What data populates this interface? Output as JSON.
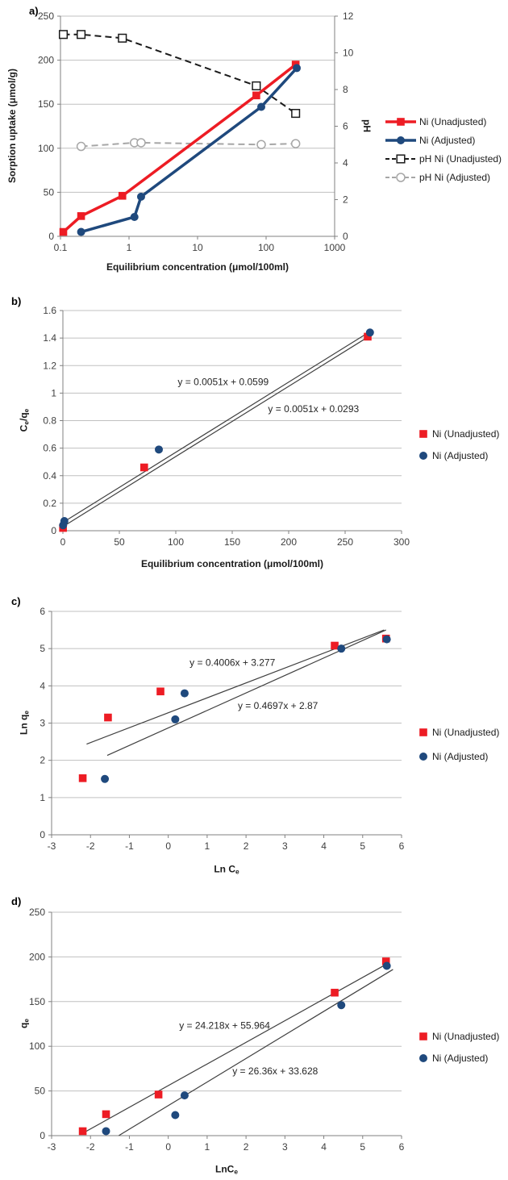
{
  "page": {
    "background": "#ffffff"
  },
  "colors": {
    "red": "#ed1c24",
    "blue": "#1f497d",
    "black": "#1a1a1a",
    "gray": "#a6a6a6",
    "gridline": "#c0c0c0",
    "axis": "#808080",
    "fit_line": "#404040",
    "tick_text": "#3f3f3f",
    "equation_text": "#262626"
  },
  "chart_data": [
    {
      "panel_label": "a)",
      "type": "line",
      "x_axis": {
        "scale": "log",
        "min": 0.1,
        "max": 1000,
        "ticks": [
          0.1,
          1,
          10,
          100,
          1000
        ],
        "label": "Equilibrium concentration (μmol/100ml)"
      },
      "y_axis": {
        "min": 0,
        "max": 250,
        "step": 50,
        "label": "Sorption uptake (μmol/g)"
      },
      "y2_axis": {
        "min": 0,
        "max": 12,
        "step": 2,
        "label": "pH"
      },
      "grid": "horizontal",
      "legend_position": "right",
      "series": [
        {
          "name": "Ni (Unadjusted)",
          "axis": "y1",
          "color": "red",
          "marker": "square",
          "marker_style": "filled",
          "line": "solid",
          "points": [
            [
              0.11,
              5
            ],
            [
              0.2,
              23
            ],
            [
              0.8,
              46
            ],
            [
              72,
              160
            ],
            [
              270,
              195
            ]
          ]
        },
        {
          "name": "Ni (Adjusted)",
          "axis": "y1",
          "color": "blue",
          "marker": "circle",
          "marker_style": "filled",
          "line": "solid",
          "points": [
            [
              0.2,
              5
            ],
            [
              1.2,
              22
            ],
            [
              1.5,
              45
            ],
            [
              85,
              147
            ],
            [
              280,
              191
            ]
          ]
        },
        {
          "name": "pH Ni (Unadjusted)",
          "axis": "y2",
          "color": "black",
          "marker": "square",
          "marker_style": "open",
          "line": "dashed",
          "points": [
            [
              0.11,
              11
            ],
            [
              0.2,
              11
            ],
            [
              0.8,
              10.8
            ],
            [
              72,
              8.2
            ],
            [
              270,
              6.7
            ]
          ]
        },
        {
          "name": "pH Ni (Adjusted)",
          "axis": "y2",
          "color": "gray",
          "marker": "circle",
          "marker_style": "open",
          "line": "dashed",
          "points": [
            [
              0.2,
              4.9
            ],
            [
              1.2,
              5.1
            ],
            [
              1.5,
              5.1
            ],
            [
              85,
              5.0
            ],
            [
              270,
              5.05
            ]
          ]
        }
      ]
    },
    {
      "panel_label": "b)",
      "type": "scatter",
      "x_axis": {
        "scale": "linear",
        "min": 0,
        "max": 300,
        "step": 50,
        "label": "Equilibrium concentration (μmol/100ml)"
      },
      "y_axis": {
        "min": 0,
        "max": 1.6,
        "step": 0.2,
        "label": "Ce/qe"
      },
      "grid": "horizontal",
      "legend_position": "right",
      "series": [
        {
          "name": "Ni (Unadjusted)",
          "color": "red",
          "marker": "square",
          "marker_style": "filled",
          "points": [
            [
              0.11,
              0.02
            ],
            [
              72,
              0.46
            ],
            [
              270,
              1.41
            ]
          ]
        },
        {
          "name": "Ni (Adjusted)",
          "color": "blue",
          "marker": "circle",
          "marker_style": "filled",
          "points": [
            [
              0.2,
              0.04
            ],
            [
              1.3,
              0.07
            ],
            [
              85,
              0.59
            ],
            [
              272,
              1.44
            ]
          ]
        }
      ],
      "fit_lines": [
        {
          "equation": "y = 0.0051x + 0.0599",
          "slope": 0.0051,
          "intercept": 0.0599,
          "x_range": [
            0,
            272
          ],
          "label_pos": [
            142,
            1.08
          ]
        },
        {
          "equation": "y = 0.0051x + 0.0293",
          "slope": 0.0051,
          "intercept": 0.0293,
          "x_range": [
            0,
            272
          ],
          "label_pos": [
            222,
            0.885
          ]
        }
      ]
    },
    {
      "panel_label": "c)",
      "type": "scatter",
      "x_axis": {
        "scale": "linear",
        "min": -3,
        "max": 6,
        "step": 1,
        "label": "Ln Ce"
      },
      "y_axis": {
        "min": 0,
        "max": 6,
        "step": 1,
        "label": "Ln qe"
      },
      "grid": "horizontal",
      "legend_position": "right",
      "series": [
        {
          "name": "Ni (Unadjusted)",
          "color": "red",
          "marker": "square",
          "marker_style": "filled",
          "points": [
            [
              -2.2,
              1.52
            ],
            [
              -1.55,
              3.15
            ],
            [
              -0.2,
              3.85
            ],
            [
              4.28,
              5.08
            ],
            [
              5.6,
              5.27
            ]
          ]
        },
        {
          "name": "Ni (Adjusted)",
          "color": "blue",
          "marker": "circle",
          "marker_style": "filled",
          "points": [
            [
              -1.63,
              1.5
            ],
            [
              0.18,
              3.1
            ],
            [
              0.42,
              3.8
            ],
            [
              4.45,
              5.0
            ],
            [
              5.62,
              5.25
            ]
          ]
        }
      ],
      "fit_lines": [
        {
          "equation": "y = 0.4006x + 3.277",
          "slope": 0.4006,
          "intercept": 3.277,
          "x_range": [
            -2.1,
            5.55
          ],
          "label_pos": [
            1.65,
            4.62
          ]
        },
        {
          "equation": "y = 0.4697x + 2.87",
          "slope": 0.4697,
          "intercept": 2.87,
          "x_range": [
            -1.57,
            5.6
          ],
          "label_pos": [
            2.82,
            3.47
          ]
        }
      ]
    },
    {
      "panel_label": "d)",
      "type": "scatter",
      "x_axis": {
        "scale": "linear",
        "min": -3,
        "max": 6,
        "step": 1,
        "label": "LnCe"
      },
      "y_axis": {
        "min": 0,
        "max": 250,
        "step": 50,
        "label": "qe"
      },
      "grid": "horizontal",
      "legend_position": "right",
      "series": [
        {
          "name": "Ni (Unadjusted)",
          "color": "red",
          "marker": "square",
          "marker_style": "filled",
          "points": [
            [
              -2.2,
              5
            ],
            [
              -1.6,
              24
            ],
            [
              -0.25,
              46
            ],
            [
              4.28,
              160
            ],
            [
              5.6,
              195
            ]
          ]
        },
        {
          "name": "Ni (Adjusted)",
          "color": "blue",
          "marker": "circle",
          "marker_style": "filled",
          "points": [
            [
              -1.6,
              5
            ],
            [
              0.18,
              23
            ],
            [
              0.42,
              45
            ],
            [
              4.45,
              146
            ],
            [
              5.62,
              190
            ]
          ]
        }
      ],
      "fit_lines": [
        {
          "equation": "y = 24.218x + 55.964",
          "slope": 24.218,
          "intercept": 55.964,
          "x_range": [
            -2.25,
            5.62
          ],
          "label_pos": [
            1.45,
            123
          ]
        },
        {
          "equation": "y = 26.36x + 33.628",
          "slope": 26.36,
          "intercept": 33.628,
          "x_range": [
            -1.27,
            5.78
          ],
          "label_pos": [
            2.75,
            72
          ]
        }
      ]
    }
  ]
}
